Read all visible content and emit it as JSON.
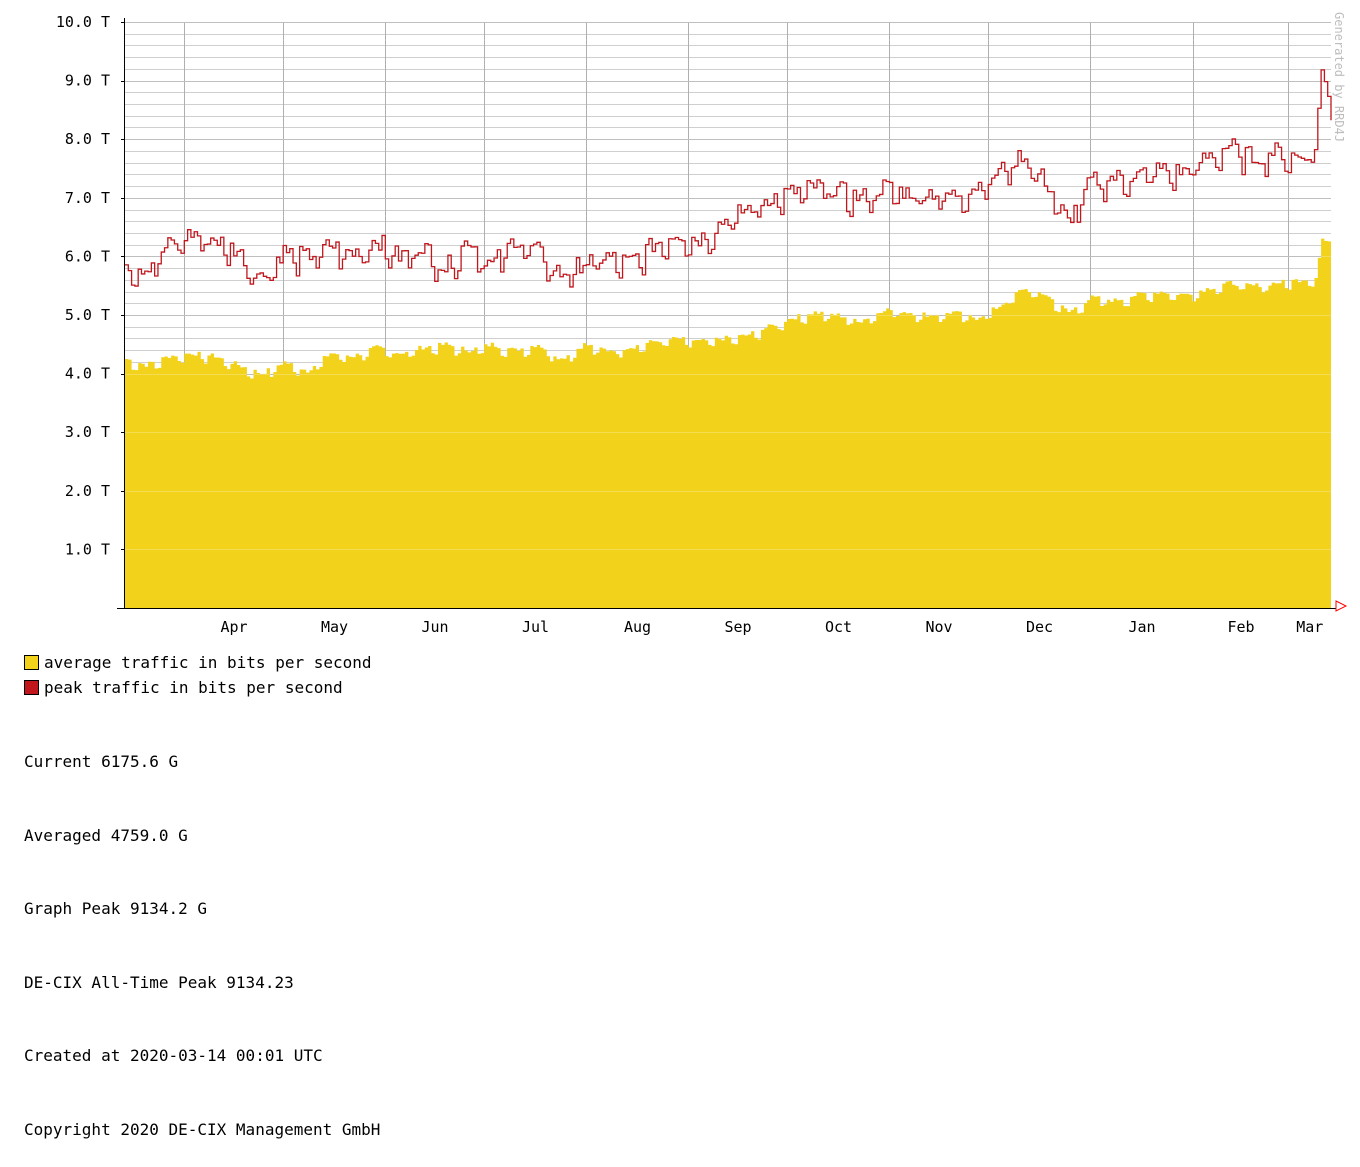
{
  "chart_data": {
    "type": "area",
    "title": "",
    "xlabel": "",
    "ylabel": "",
    "ylim": [
      0,
      10
    ],
    "y_unit": "T",
    "y_ticks": [
      "",
      "1.0 T",
      "2.0 T",
      "3.0 T",
      "4.0 T",
      "5.0 T",
      "6.0 T",
      "7.0 T",
      "8.0 T",
      "9.0 T",
      "10.0 T"
    ],
    "x_months": [
      "Apr",
      "May",
      "Jun",
      "Jul",
      "Aug",
      "Sep",
      "Oct",
      "Nov",
      "Dec",
      "Jan",
      "Feb",
      "Mar"
    ],
    "x_range": [
      "2019-03-14",
      "2020-03-14"
    ],
    "grid": true,
    "series": [
      {
        "name": "average traffic in bits per second",
        "style": "filled-area",
        "color": "#f2d21a",
        "points": [
          [
            "2019-03-14",
            4.25
          ],
          [
            "2019-03-20",
            4.15
          ],
          [
            "2019-03-27",
            4.3
          ],
          [
            "2019-04-03",
            4.35
          ],
          [
            "2019-04-10",
            4.3
          ],
          [
            "2019-04-17",
            4.15
          ],
          [
            "2019-04-24",
            4.0
          ],
          [
            "2019-05-01",
            4.2
          ],
          [
            "2019-05-08",
            4.05
          ],
          [
            "2019-05-15",
            4.35
          ],
          [
            "2019-05-22",
            4.3
          ],
          [
            "2019-05-29",
            4.45
          ],
          [
            "2019-06-05",
            4.35
          ],
          [
            "2019-06-12",
            4.45
          ],
          [
            "2019-06-19",
            4.5
          ],
          [
            "2019-06-26",
            4.4
          ],
          [
            "2019-07-03",
            4.5
          ],
          [
            "2019-07-10",
            4.4
          ],
          [
            "2019-07-17",
            4.5
          ],
          [
            "2019-07-24",
            4.25
          ],
          [
            "2019-07-31",
            4.5
          ],
          [
            "2019-08-07",
            4.4
          ],
          [
            "2019-08-14",
            4.45
          ],
          [
            "2019-08-21",
            4.55
          ],
          [
            "2019-08-28",
            4.6
          ],
          [
            "2019-09-04",
            4.55
          ],
          [
            "2019-09-11",
            4.6
          ],
          [
            "2019-09-18",
            4.65
          ],
          [
            "2019-09-25",
            4.8
          ],
          [
            "2019-10-02",
            4.95
          ],
          [
            "2019-10-09",
            5.05
          ],
          [
            "2019-10-16",
            5.0
          ],
          [
            "2019-10-23",
            4.9
          ],
          [
            "2019-10-30",
            5.1
          ],
          [
            "2019-11-06",
            5.05
          ],
          [
            "2019-11-13",
            5.0
          ],
          [
            "2019-11-20",
            5.05
          ],
          [
            "2019-11-27",
            4.95
          ],
          [
            "2019-12-04",
            5.15
          ],
          [
            "2019-12-11",
            5.45
          ],
          [
            "2019-12-18",
            5.35
          ],
          [
            "2019-12-25",
            5.05
          ],
          [
            "2020-01-01",
            5.3
          ],
          [
            "2020-01-08",
            5.25
          ],
          [
            "2020-01-15",
            5.35
          ],
          [
            "2020-01-22",
            5.4
          ],
          [
            "2020-01-29",
            5.35
          ],
          [
            "2020-02-05",
            5.45
          ],
          [
            "2020-02-12",
            5.55
          ],
          [
            "2020-02-19",
            5.5
          ],
          [
            "2020-02-26",
            5.55
          ],
          [
            "2020-03-04",
            5.6
          ],
          [
            "2020-03-09",
            5.65
          ],
          [
            "2020-03-11",
            6.3
          ],
          [
            "2020-03-14",
            6.18
          ]
        ]
      },
      {
        "name": "peak traffic in bits per second",
        "style": "line",
        "color": "#c0161c",
        "points": [
          [
            "2019-03-14",
            5.9
          ],
          [
            "2019-03-20",
            5.8
          ],
          [
            "2019-03-27",
            6.2
          ],
          [
            "2019-04-03",
            6.4
          ],
          [
            "2019-04-10",
            6.3
          ],
          [
            "2019-04-17",
            6.1
          ],
          [
            "2019-04-24",
            5.65
          ],
          [
            "2019-05-01",
            6.1
          ],
          [
            "2019-05-08",
            6.0
          ],
          [
            "2019-05-15",
            6.2
          ],
          [
            "2019-05-22",
            6.05
          ],
          [
            "2019-05-29",
            6.3
          ],
          [
            "2019-06-05",
            6.0
          ],
          [
            "2019-06-12",
            6.2
          ],
          [
            "2019-06-19",
            5.8
          ],
          [
            "2019-06-26",
            6.3
          ],
          [
            "2019-07-03",
            5.85
          ],
          [
            "2019-07-10",
            6.3
          ],
          [
            "2019-07-17",
            6.1
          ],
          [
            "2019-07-24",
            5.7
          ],
          [
            "2019-07-31",
            5.9
          ],
          [
            "2019-08-07",
            6.0
          ],
          [
            "2019-08-14",
            5.9
          ],
          [
            "2019-08-21",
            6.2
          ],
          [
            "2019-08-28",
            6.4
          ],
          [
            "2019-09-04",
            6.3
          ],
          [
            "2019-09-11",
            6.6
          ],
          [
            "2019-09-18",
            6.8
          ],
          [
            "2019-09-25",
            7.0
          ],
          [
            "2019-10-02",
            7.1
          ],
          [
            "2019-10-09",
            7.2
          ],
          [
            "2019-10-16",
            7.15
          ],
          [
            "2019-10-23",
            7.0
          ],
          [
            "2019-10-30",
            7.2
          ],
          [
            "2019-11-06",
            7.1
          ],
          [
            "2019-11-13",
            7.1
          ],
          [
            "2019-11-20",
            7.05
          ],
          [
            "2019-11-27",
            7.2
          ],
          [
            "2019-12-04",
            7.45
          ],
          [
            "2019-12-11",
            7.75
          ],
          [
            "2019-12-18",
            7.3
          ],
          [
            "2019-12-25",
            6.6
          ],
          [
            "2020-01-01",
            7.3
          ],
          [
            "2020-01-08",
            7.35
          ],
          [
            "2020-01-15",
            7.4
          ],
          [
            "2020-01-22",
            7.5
          ],
          [
            "2020-01-29",
            7.45
          ],
          [
            "2020-02-05",
            7.7
          ],
          [
            "2020-02-12",
            7.9
          ],
          [
            "2020-02-19",
            7.7
          ],
          [
            "2020-02-26",
            7.8
          ],
          [
            "2020-03-04",
            7.7
          ],
          [
            "2020-03-09",
            7.9
          ],
          [
            "2020-03-11",
            9.13
          ],
          [
            "2020-03-14",
            8.65
          ]
        ]
      }
    ]
  },
  "legend": {
    "avg_label": "average traffic in bits per second",
    "peak_label": "peak traffic in bits per second"
  },
  "stats": {
    "current": "Current 6175.6 G",
    "averaged": "Averaged 4759.0 G",
    "graph_peak": "Graph Peak 9134.2 G",
    "all_time_peak": "DE-CIX All-Time Peak 9134.23",
    "created": "Created at 2020-03-14 00:01 UTC",
    "copyright": "Copyright 2020 DE-CIX Management GmbH"
  },
  "watermark": "Generated by RRD4J",
  "colors": {
    "average": "#f2d21a",
    "peak": "#c0161c",
    "grid": "#bbbbbb",
    "axis_arrow": "#ff0000"
  }
}
